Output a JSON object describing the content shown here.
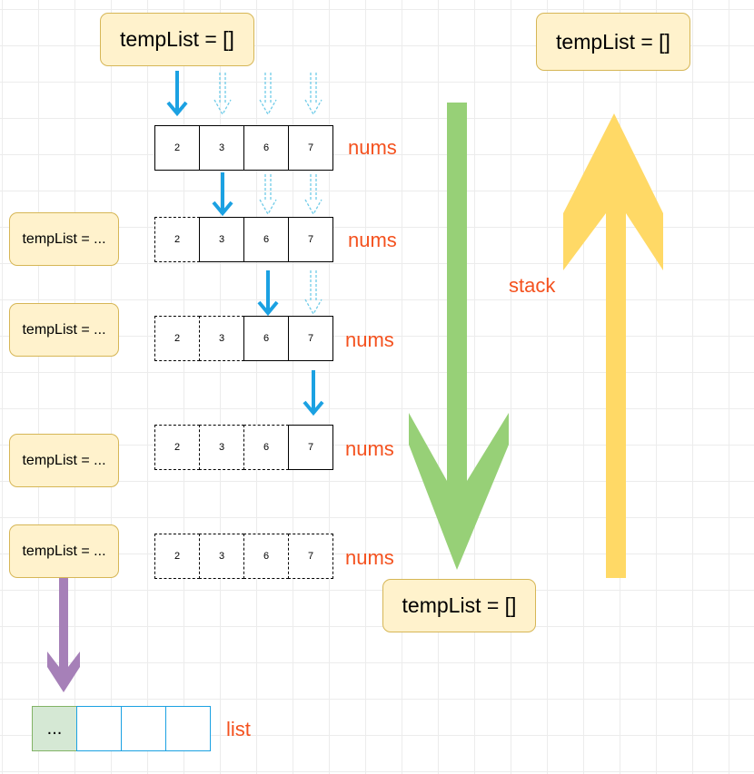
{
  "top_box": "tempList = []",
  "top_right_box": "tempList = []",
  "bottom_box": "tempList = []",
  "left_boxes": [
    "tempList = ...",
    "tempList = ...",
    "tempList = ...",
    "tempList = ..."
  ],
  "nums_values": [
    "2",
    "3",
    "6",
    "7"
  ],
  "nums_label": "nums",
  "stack_label": "stack",
  "list_label": "list",
  "list_first": "...",
  "colors": {
    "blue_arrow": "#1ba1e2",
    "green_arrow": "#97d077",
    "yellow_arrow": "#ffd966",
    "purple_arrow": "#a680b8",
    "label": "#f4511e",
    "note_fill": "#fff2cc"
  }
}
